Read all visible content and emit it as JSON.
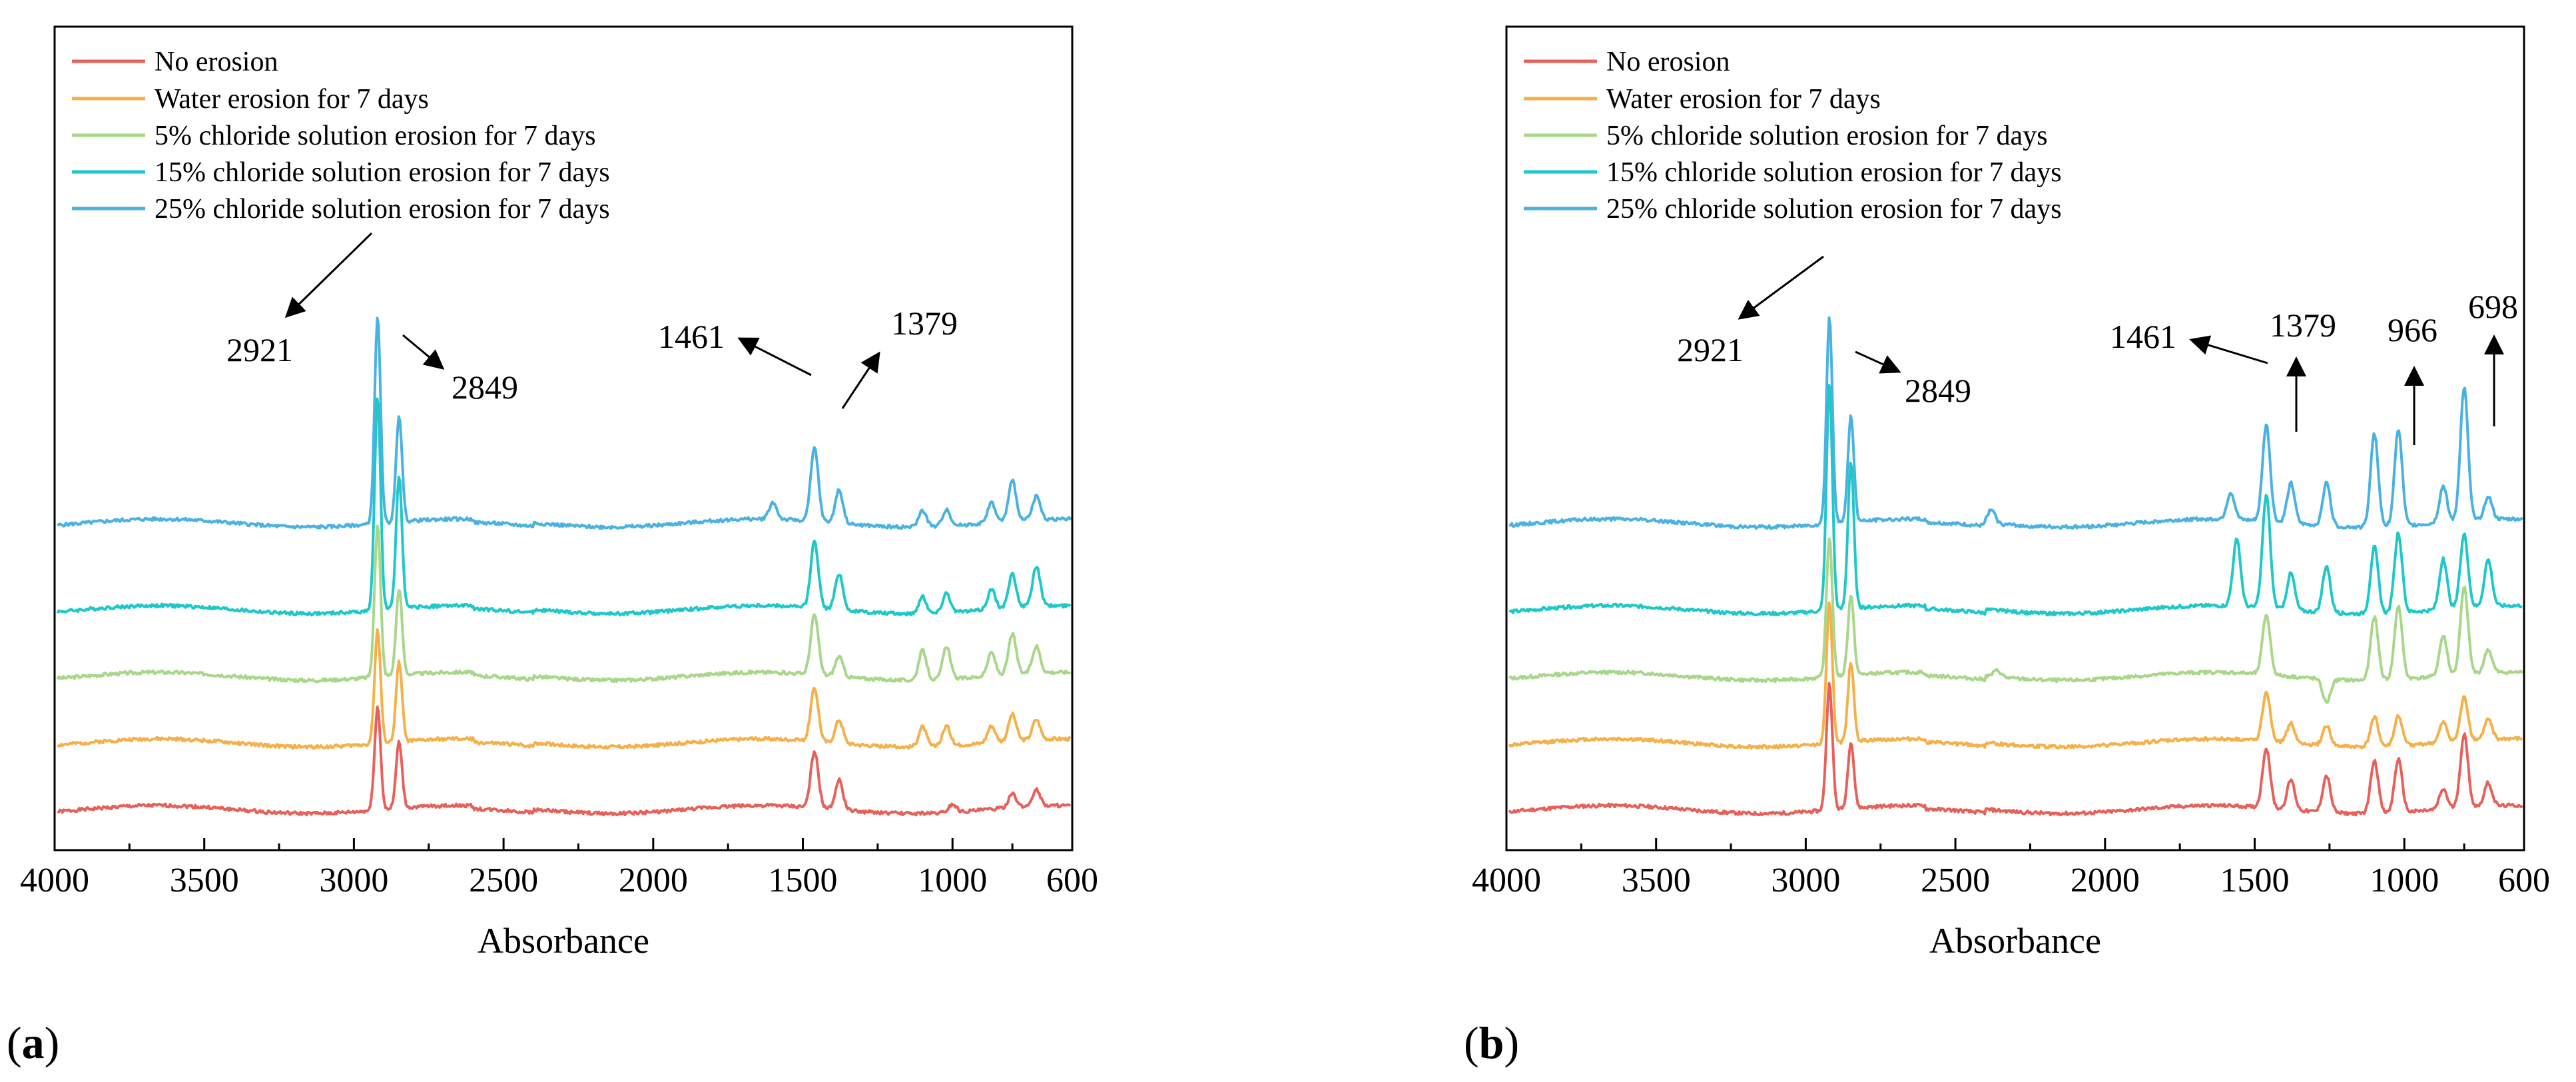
{
  "chart_data": [
    {
      "type": "line",
      "panel_label": "a",
      "title": "",
      "xlabel": "Absorbance",
      "ylabel": "",
      "xlim": [
        4000,
        600
      ],
      "x_reversed": true,
      "x_ticks": [
        4000,
        3500,
        3000,
        2500,
        2000,
        1500,
        1000,
        600
      ],
      "grid": false,
      "legend_position": "top-left",
      "series": [
        {
          "name": "No erosion",
          "color": "#e8605a",
          "offset": 0.0,
          "peaks": [
            [
              2921,
              1.55
            ],
            [
              2849,
              1.0
            ],
            [
              1461,
              0.85
            ],
            [
              1379,
              0.45
            ],
            [
              1000,
              0.12
            ],
            [
              800,
              0.2
            ],
            [
              720,
              0.25
            ]
          ]
        },
        {
          "name": "Water erosion for 7 days",
          "color": "#f5b04a",
          "offset": 1.0,
          "peaks": [
            [
              2921,
              1.7
            ],
            [
              2849,
              1.2
            ],
            [
              1461,
              0.8
            ],
            [
              1379,
              0.35
            ],
            [
              1100,
              0.3
            ],
            [
              1020,
              0.3
            ],
            [
              870,
              0.25
            ],
            [
              800,
              0.4
            ],
            [
              720,
              0.3
            ]
          ]
        },
        {
          "name": "5% chloride solution erosion for 7 days",
          "color": "#a8d78a",
          "offset": 2.0,
          "peaks": [
            [
              2921,
              2.3
            ],
            [
              2849,
              1.3
            ],
            [
              1461,
              0.9
            ],
            [
              1379,
              0.3
            ],
            [
              1100,
              0.45
            ],
            [
              1020,
              0.5
            ],
            [
              870,
              0.35
            ],
            [
              800,
              0.6
            ],
            [
              720,
              0.4
            ]
          ]
        },
        {
          "name": "15% chloride solution erosion for 7 days",
          "color": "#1ec8c8",
          "offset": 3.0,
          "peaks": [
            [
              2921,
              3.2
            ],
            [
              2849,
              2.0
            ],
            [
              1461,
              1.0
            ],
            [
              1379,
              0.55
            ],
            [
              1100,
              0.25
            ],
            [
              1020,
              0.3
            ],
            [
              870,
              0.3
            ],
            [
              800,
              0.5
            ],
            [
              720,
              0.6
            ]
          ]
        },
        {
          "name": "25% chloride solution erosion for 7 days",
          "color": "#4ab2e0",
          "offset": 4.3,
          "peaks": [
            [
              2921,
              3.1
            ],
            [
              2849,
              1.6
            ],
            [
              1600,
              0.25
            ],
            [
              1461,
              1.1
            ],
            [
              1379,
              0.5
            ],
            [
              1100,
              0.25
            ],
            [
              1020,
              0.25
            ],
            [
              870,
              0.3
            ],
            [
              800,
              0.6
            ],
            [
              720,
              0.35
            ]
          ]
        }
      ],
      "annotations": [
        {
          "text": "2921",
          "x": 2921
        },
        {
          "text": "2849",
          "x": 2849
        },
        {
          "text": "1461",
          "x": 1461
        },
        {
          "text": "1379",
          "x": 1379
        }
      ]
    },
    {
      "type": "line",
      "panel_label": "b",
      "title": "",
      "xlabel": "Absorbance",
      "ylabel": "",
      "xlim": [
        4000,
        600
      ],
      "x_reversed": true,
      "x_ticks": [
        4000,
        3500,
        3000,
        2500,
        2000,
        1500,
        1000,
        600
      ],
      "grid": false,
      "legend_position": "top-left",
      "series": [
        {
          "name": "No erosion",
          "color": "#e8605a",
          "offset": 0.0,
          "peaks": [
            [
              2921,
              1.9
            ],
            [
              2849,
              1.0
            ],
            [
              1461,
              0.9
            ],
            [
              1379,
              0.45
            ],
            [
              1260,
              0.55
            ],
            [
              1100,
              0.8
            ],
            [
              1020,
              0.8
            ],
            [
              870,
              0.3
            ],
            [
              800,
              1.1
            ],
            [
              720,
              0.35
            ]
          ]
        },
        {
          "name": "Water erosion for 7 days",
          "color": "#f5b04a",
          "offset": 1.0,
          "peaks": [
            [
              2921,
              2.1
            ],
            [
              2849,
              1.2
            ],
            [
              1461,
              0.75
            ],
            [
              1379,
              0.3
            ],
            [
              1260,
              0.3
            ],
            [
              1100,
              0.45
            ],
            [
              1020,
              0.45
            ],
            [
              870,
              0.3
            ],
            [
              800,
              0.65
            ],
            [
              720,
              0.3
            ]
          ]
        },
        {
          "name": "5% chloride solution erosion for 7 days",
          "color": "#a8d78a",
          "offset": 2.0,
          "peaks": [
            [
              2921,
              2.1
            ],
            [
              2849,
              1.2
            ],
            [
              2360,
              0.1
            ],
            [
              1461,
              0.9
            ],
            [
              1260,
              -0.35
            ],
            [
              1100,
              0.95
            ],
            [
              1020,
              1.1
            ],
            [
              870,
              0.6
            ],
            [
              800,
              1.3
            ],
            [
              720,
              0.35
            ]
          ]
        },
        {
          "name": "15% chloride solution erosion for 7 days",
          "color": "#1ec8c8",
          "offset": 3.0,
          "peaks": [
            [
              2921,
              3.4
            ],
            [
              2849,
              2.2
            ],
            [
              1560,
              1.0
            ],
            [
              1461,
              1.7
            ],
            [
              1379,
              0.55
            ],
            [
              1260,
              0.7
            ],
            [
              1100,
              1.0
            ],
            [
              1020,
              1.2
            ],
            [
              870,
              0.75
            ],
            [
              800,
              1.1
            ],
            [
              720,
              0.7
            ]
          ]
        },
        {
          "name": "25% chloride solution erosion for 7 days",
          "color": "#4ab2e0",
          "offset": 4.3,
          "peaks": [
            [
              2921,
              3.1
            ],
            [
              2849,
              1.6
            ],
            [
              2380,
              0.2
            ],
            [
              1580,
              0.4
            ],
            [
              1461,
              1.45
            ],
            [
              1379,
              0.6
            ],
            [
              1260,
              0.65
            ],
            [
              1100,
              1.4
            ],
            [
              1020,
              1.45
            ],
            [
              870,
              0.55
            ],
            [
              800,
              2.0
            ],
            [
              720,
              0.35
            ]
          ]
        }
      ],
      "annotations": [
        {
          "text": "2921",
          "x": 2921
        },
        {
          "text": "2849",
          "x": 2849
        },
        {
          "text": "1461",
          "x": 1461
        },
        {
          "text": "1379",
          "x": 1379
        },
        {
          "text": "966",
          "x": 966
        },
        {
          "text": "698",
          "x": 698
        }
      ]
    }
  ]
}
